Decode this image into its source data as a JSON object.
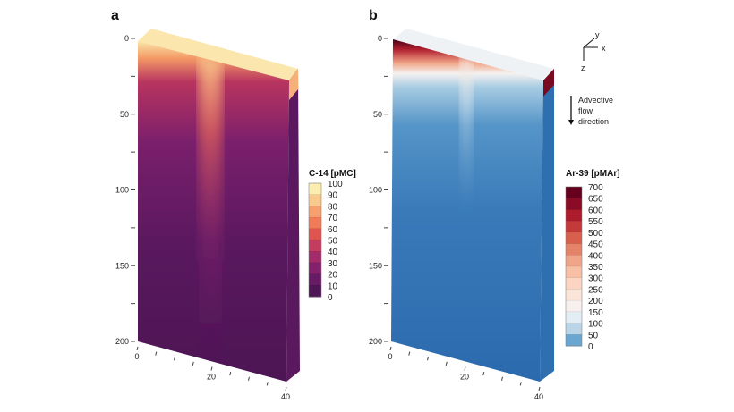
{
  "chart_data": [
    {
      "type": "heatmap",
      "panel_label": "a",
      "z_ticks": [
        "0",
        "50",
        "100",
        "150",
        "200"
      ],
      "x_ticks": [
        "0",
        "20",
        "40"
      ],
      "colorbar": {
        "title": "C-14 [pMC]",
        "ticks": [
          "100",
          "90",
          "80",
          "70",
          "60",
          "50",
          "40",
          "30",
          "20",
          "10",
          "0"
        ],
        "colors": [
          "#fbeeb0",
          "#f9c98d",
          "#f6a070",
          "#f07b58",
          "#e05450",
          "#c43d5e",
          "#a22b6a",
          "#83216d",
          "#661b64",
          "#4e1655",
          "#3d1248"
        ]
      }
    },
    {
      "type": "heatmap",
      "panel_label": "b",
      "z_ticks": [
        "0",
        "50",
        "100",
        "150",
        "200"
      ],
      "x_ticks": [
        "0",
        "20",
        "40"
      ],
      "colorbar": {
        "title": "Ar-39 [pMAr]",
        "ticks": [
          "700",
          "650",
          "600",
          "550",
          "500",
          "450",
          "400",
          "350",
          "300",
          "250",
          "200",
          "150",
          "100",
          "50",
          "0"
        ],
        "colors": [
          "#67001f",
          "#8a0b25",
          "#ac1c2d",
          "#c43a3a",
          "#d6604d",
          "#e4826a",
          "#f0a58a",
          "#f6bfa6",
          "#fbd5c2",
          "#fbe5d8",
          "#f7f0ee",
          "#e3edf4",
          "#b9d5e7",
          "#6aa7d0",
          "#2f6fb0"
        ]
      },
      "axes_indicator": [
        "y",
        "x",
        "z"
      ],
      "annotation": [
        "Advective",
        "flow",
        "direction"
      ]
    }
  ]
}
